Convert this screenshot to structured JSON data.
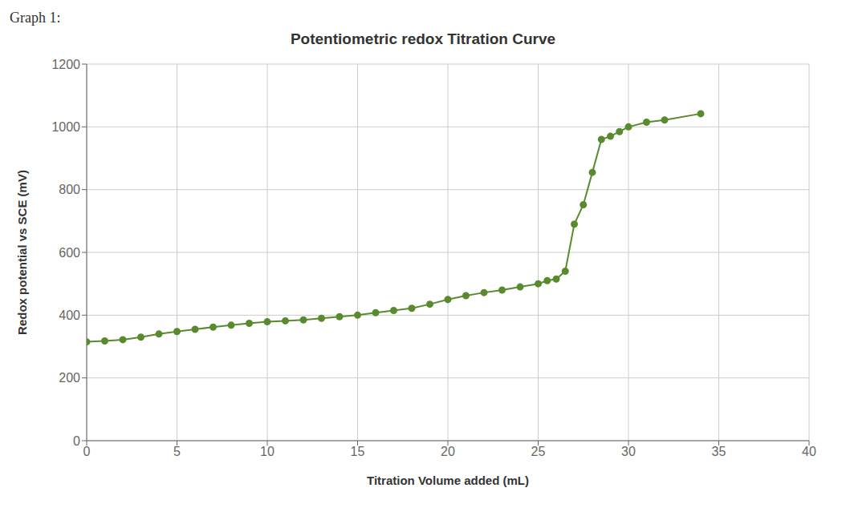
{
  "chart_data": {
    "type": "line",
    "title": "Potentiometric redox Titration Curve",
    "annotations": [
      "Graph 1:"
    ],
    "xlabel": "Titration Volume added (mL)",
    "ylabel": "Redox potential vs SCE (mV)",
    "x": [
      0,
      1,
      2,
      3,
      4,
      5,
      6,
      7,
      8,
      9,
      10,
      11,
      12,
      13,
      14,
      15,
      16,
      17,
      18,
      19,
      20,
      21,
      22,
      23,
      24,
      25,
      25.5,
      26,
      26.5,
      27,
      27.5,
      28,
      28.5,
      29,
      29.5,
      30,
      31,
      32,
      34
    ],
    "values": [
      315,
      318,
      322,
      330,
      340,
      348,
      355,
      362,
      368,
      374,
      379,
      382,
      385,
      390,
      395,
      400,
      408,
      415,
      422,
      435,
      450,
      462,
      472,
      480,
      490,
      500,
      510,
      515,
      540,
      690,
      752,
      855,
      960,
      970,
      985,
      1000,
      1015,
      1022,
      1042
    ],
    "color": "#5a8a2e",
    "marker": "circle",
    "xlim": [
      0,
      40
    ],
    "ylim": [
      0,
      1200
    ],
    "xticks": [
      0,
      5,
      10,
      15,
      20,
      25,
      30,
      35,
      40
    ],
    "yticks": [
      0,
      200,
      400,
      600,
      800,
      1000,
      1200
    ],
    "grid": true
  }
}
